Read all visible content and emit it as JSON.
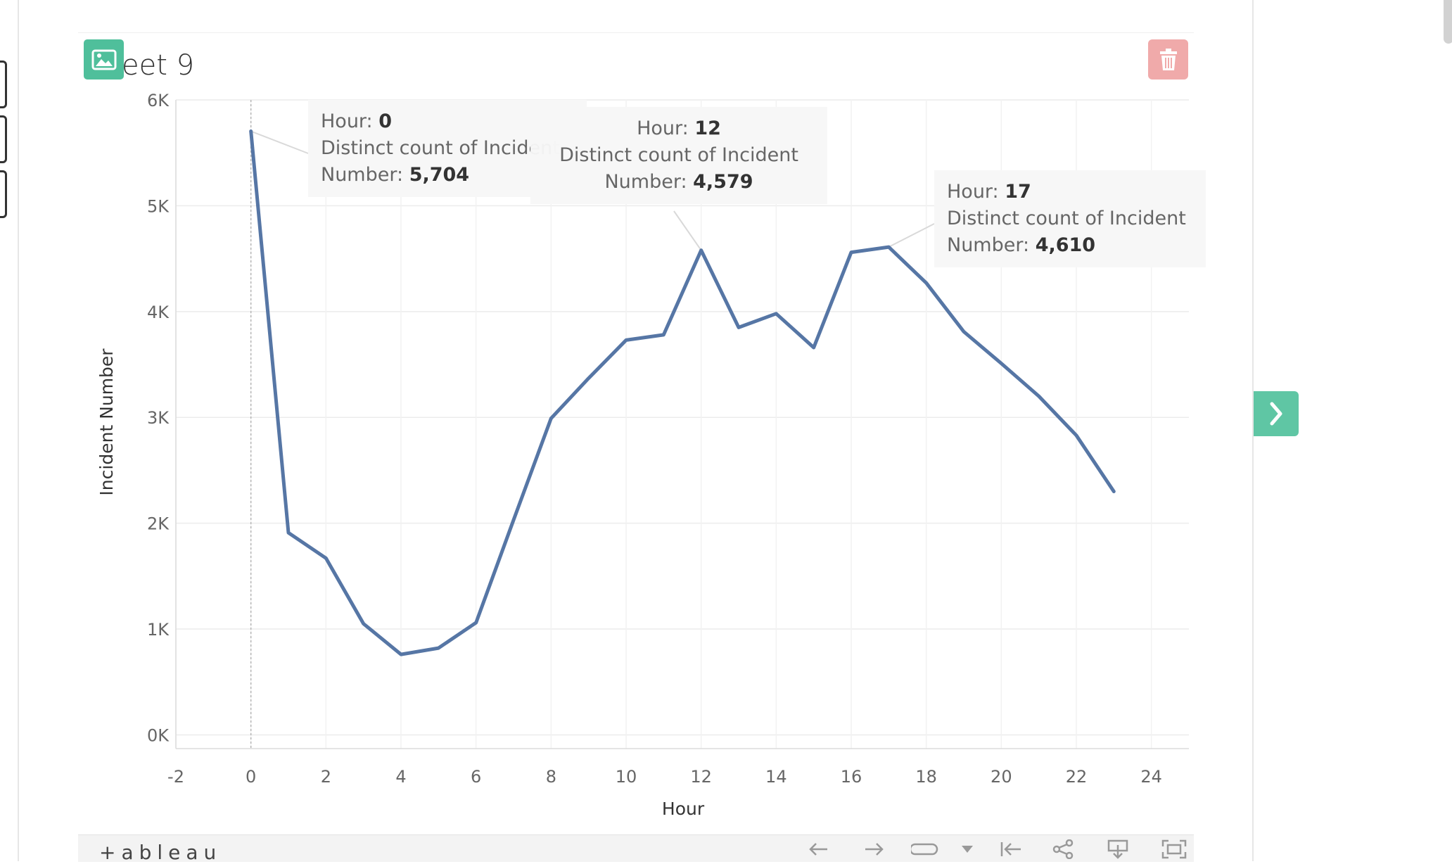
{
  "sheet": {
    "title": "eet 9"
  },
  "tooltips": [
    {
      "hour_label": "Hour:",
      "hour": "0",
      "measure_line1": "Distinct count of Inciden",
      "measure_line1_faded": "t",
      "measure_line2": "Number:",
      "value": "5,704"
    },
    {
      "hour_label": "Hour:",
      "hour": "12",
      "measure_line1": "Distinct count of Incident",
      "measure_line2": "Number:",
      "value": "4,579"
    },
    {
      "hour_label": "Hour:",
      "hour": "17",
      "measure_line1": "Distinct count of Incident",
      "measure_line2": "Number:",
      "value": "4,610"
    }
  ],
  "footer": {
    "logo": "+ableau",
    "icons": [
      "undo-icon",
      "redo-icon",
      "revert-icon",
      "dropdown-icon",
      "reset-icon",
      "share-icon",
      "download-icon",
      "fullscreen-icon"
    ]
  },
  "colors": {
    "line": "#5676a5",
    "accent_green": "#4fbf9b",
    "delete_red": "#f0aaaa"
  },
  "chart_data": {
    "type": "line",
    "title": "",
    "xlabel": "Hour",
    "ylabel": "Incident Number",
    "x": [
      0,
      1,
      2,
      3,
      4,
      5,
      6,
      7,
      8,
      9,
      10,
      11,
      12,
      13,
      14,
      15,
      16,
      17,
      18,
      19,
      20,
      21,
      22,
      23
    ],
    "series": [
      {
        "values": [
          5704,
          1910,
          1670,
          1050,
          760,
          820,
          1060,
          2030,
          2990,
          3370,
          3730,
          3780,
          4579,
          3850,
          3980,
          3660,
          4560,
          4610,
          4270,
          3810,
          3510,
          3200,
          2830,
          2300
        ]
      }
    ],
    "xlim": [
      -2,
      25
    ],
    "ylim": [
      -130,
      6000
    ],
    "xticks": [
      "-2",
      "0",
      "2",
      "4",
      "6",
      "8",
      "10",
      "12",
      "14",
      "16",
      "18",
      "20",
      "22",
      "24"
    ],
    "xtick_values": [
      -2,
      0,
      2,
      4,
      6,
      8,
      10,
      12,
      14,
      16,
      18,
      20,
      22,
      24
    ],
    "yticks": [
      "0K",
      "1K",
      "2K",
      "3K",
      "4K",
      "5K",
      "6K"
    ],
    "ytick_values": [
      0,
      1000,
      2000,
      3000,
      4000,
      5000,
      6000
    ],
    "grid": true,
    "legend": "none"
  }
}
